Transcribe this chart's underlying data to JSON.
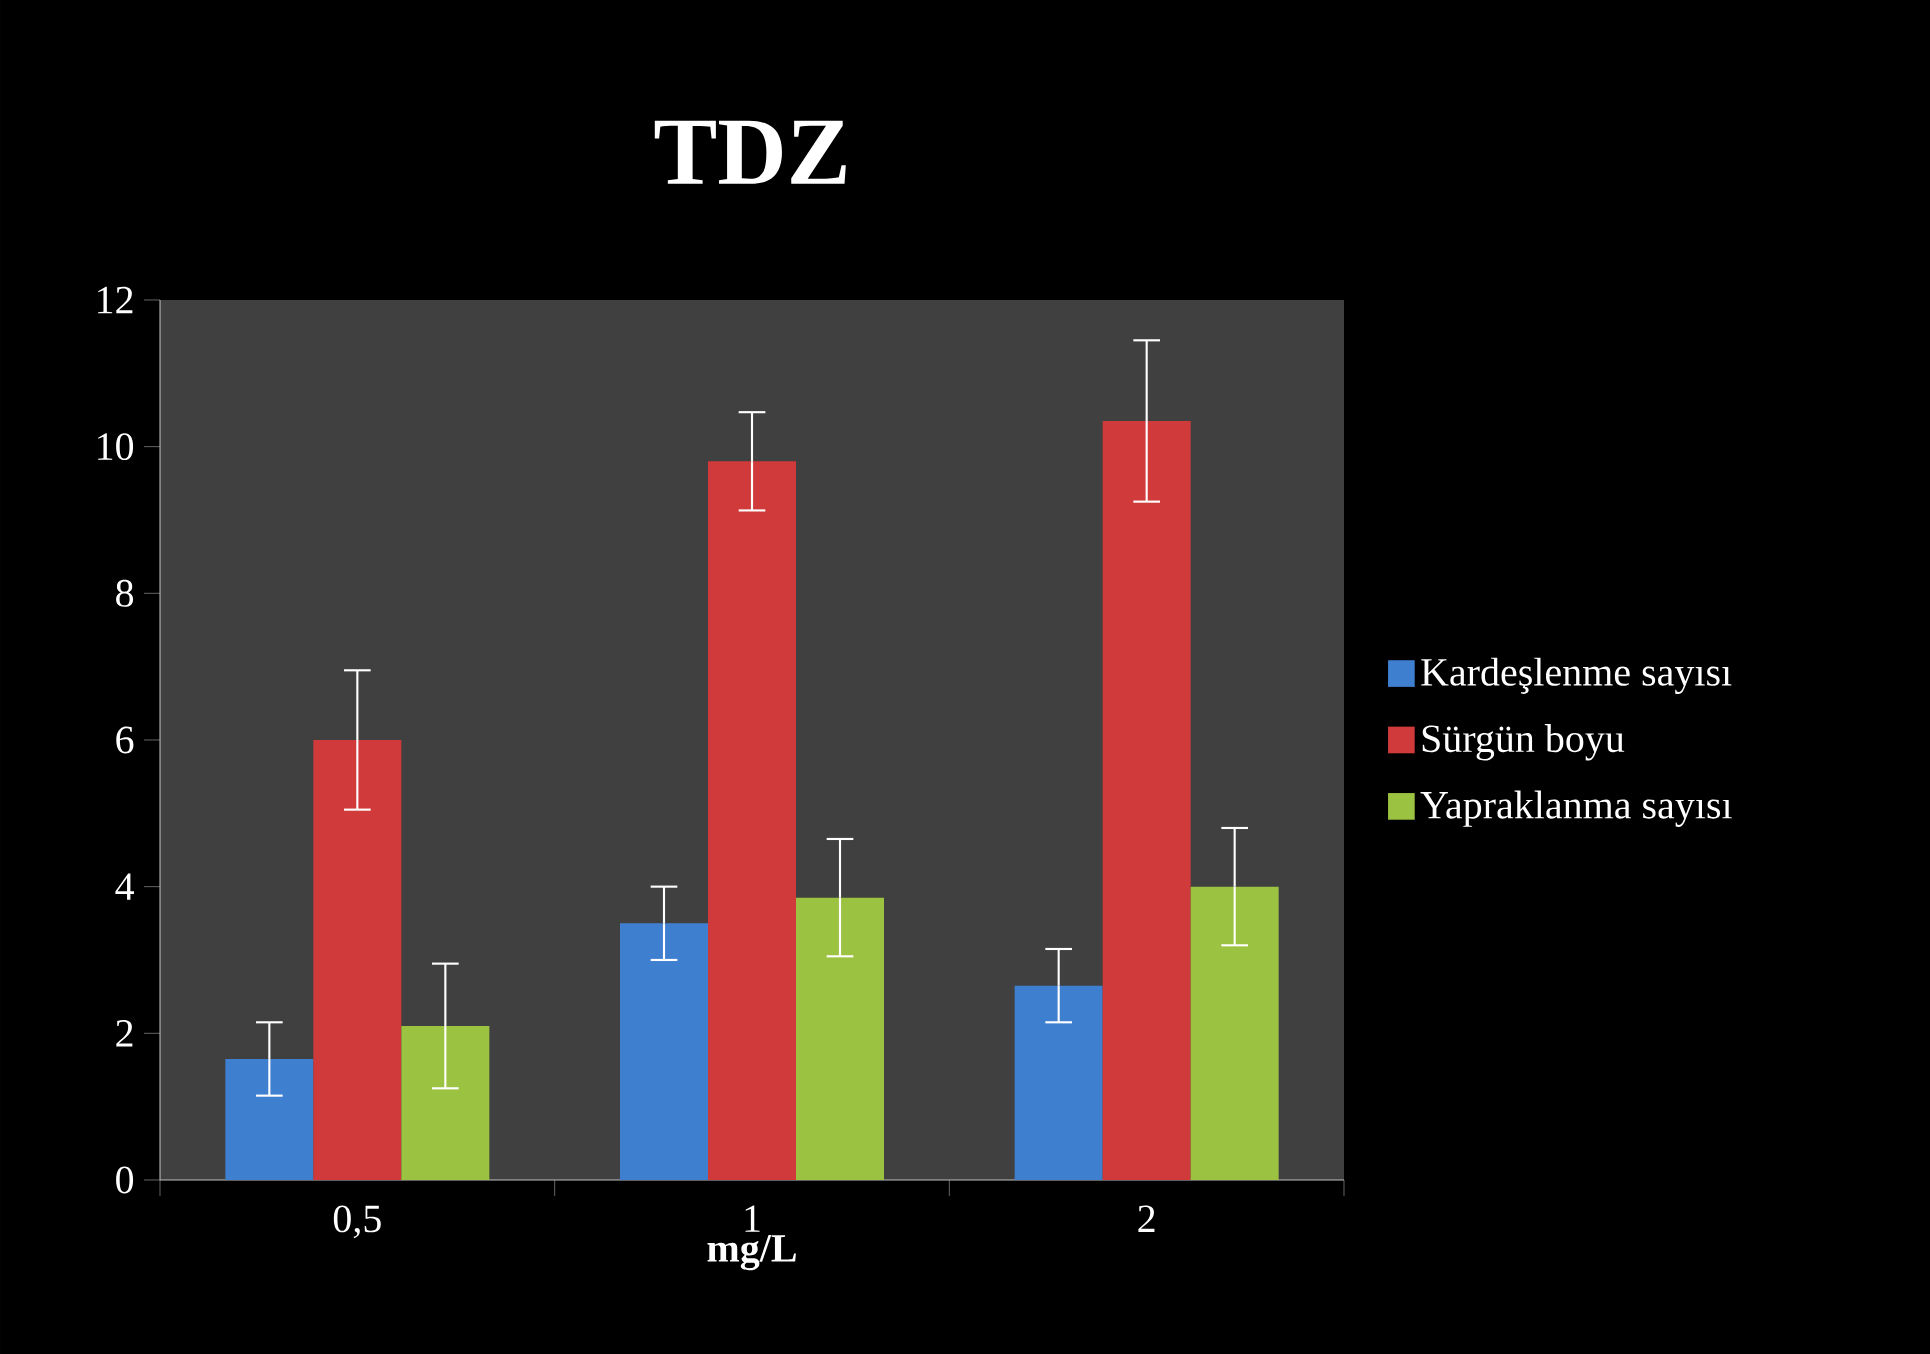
{
  "chart_data": {
    "type": "bar",
    "title": "TDZ",
    "xlabel": "mg/L",
    "categories": [
      "0,5",
      "1",
      "2"
    ],
    "series": [
      {
        "name": "Kardeşlenme sayısı",
        "color": "#3f7fd0",
        "values": [
          1.65,
          3.5,
          2.65
        ],
        "errors": [
          0.5,
          0.5,
          0.5
        ]
      },
      {
        "name": "Sürgün boyu",
        "color": "#d03a3a",
        "values": [
          6.0,
          9.8,
          10.35
        ],
        "errors": [
          0.95,
          0.67,
          1.1
        ]
      },
      {
        "name": "Yapraklanma sayısı",
        "color": "#9bc240",
        "values": [
          2.1,
          3.85,
          4.0
        ],
        "errors": [
          0.85,
          0.8,
          0.8
        ]
      }
    ],
    "ylim": [
      0,
      12
    ],
    "yticks": [
      0,
      2,
      4,
      6,
      8,
      10,
      12
    ],
    "legend": "right"
  }
}
